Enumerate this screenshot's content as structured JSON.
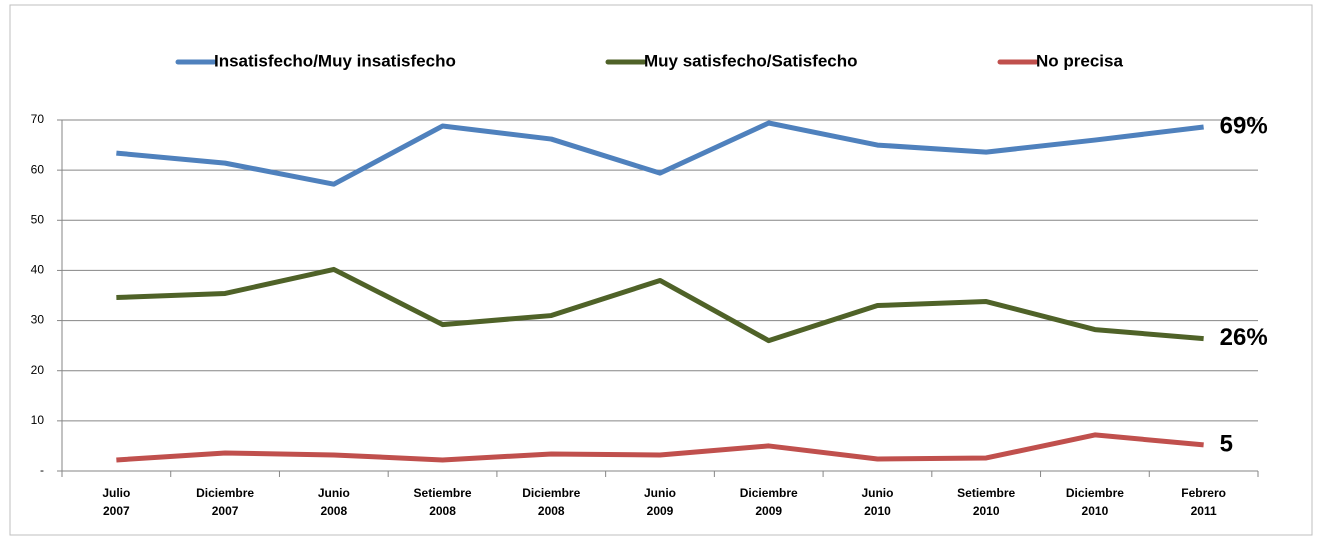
{
  "chart_data": {
    "type": "line",
    "categories": [
      "Julio 2007",
      "Diciembre 2007",
      "Junio 2008",
      "Setiembre 2008",
      "Diciembre 2008",
      "Junio 2009",
      "Diciembre 2009",
      "Junio 2010",
      "Setiembre 2010",
      "Diciembre 2010",
      "Febrero 2011"
    ],
    "series": [
      {
        "name": "Insatisfecho/Muy insatisfecho",
        "color": "#4f81bd",
        "values": [
          63.4,
          61.4,
          57.2,
          68.8,
          66.2,
          59.4,
          69.4,
          65,
          63.6,
          66,
          68.6
        ],
        "value_labels": [
          null,
          null,
          null,
          null,
          null,
          null,
          null,
          null,
          null,
          null,
          "69%"
        ]
      },
      {
        "name": "Muy satisfecho/Satisfecho",
        "color": "#4f6228",
        "values": [
          34.6,
          35.4,
          40.2,
          29.2,
          31,
          38,
          26,
          33,
          33.8,
          28.2,
          26.4
        ],
        "value_labels": [
          null,
          null,
          null,
          null,
          null,
          null,
          null,
          null,
          null,
          null,
          "26%"
        ]
      },
      {
        "name": "No precisa",
        "color": "#c0504d",
        "values": [
          2.2,
          3.6,
          3.2,
          2.2,
          3.4,
          3.2,
          5,
          2.4,
          2.6,
          7.2,
          5.2
        ],
        "value_labels": [
          null,
          null,
          null,
          null,
          null,
          null,
          null,
          null,
          null,
          null,
          "5"
        ]
      }
    ],
    "ylim": [
      0,
      70
    ],
    "yticks": [
      {
        "value": 0,
        "label": "-"
      },
      10,
      20,
      30,
      40,
      50,
      60,
      70
    ],
    "grid": true,
    "legend": "top"
  }
}
